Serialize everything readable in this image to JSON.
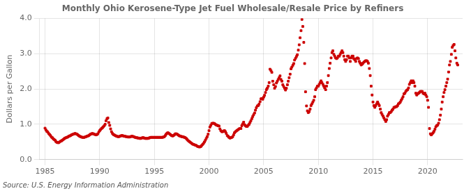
{
  "chart_data": {
    "type": "scatter",
    "title": "Monthly Ohio Kerosene-Type Jet Fuel Wholesale/Resale Price by Refiners",
    "ylabel": "Dollars per Gallon",
    "annotation": "Source: U.S. Energy Information Administration",
    "color": "#cc0000",
    "marker": "square",
    "grid": true,
    "xlim": [
      1984.5,
      2023.2
    ],
    "ylim": [
      0.0,
      4.0
    ],
    "xticks": [
      1985,
      1990,
      1995,
      2000,
      2005,
      2010,
      2015,
      2020
    ],
    "yticks": [
      {
        "value": 0.0,
        "label": "0.0"
      },
      {
        "value": 1.0,
        "label": "1.0"
      },
      {
        "value": 2.0,
        "label": "2.0"
      },
      {
        "value": 3.0,
        "label": "3.0"
      },
      {
        "value": 4.0,
        "label": "4.0"
      }
    ],
    "x": [
      1985.0,
      1985.08,
      1985.17,
      1985.25,
      1985.33,
      1985.42,
      1985.5,
      1985.58,
      1985.67,
      1985.75,
      1985.83,
      1985.92,
      1986.0,
      1986.08,
      1986.17,
      1986.25,
      1986.33,
      1986.42,
      1986.5,
      1986.58,
      1986.67,
      1986.75,
      1986.83,
      1986.92,
      1987.0,
      1987.08,
      1987.17,
      1987.25,
      1987.33,
      1987.42,
      1987.5,
      1987.58,
      1987.67,
      1987.75,
      1987.83,
      1987.92,
      1988.0,
      1988.08,
      1988.17,
      1988.25,
      1988.33,
      1988.42,
      1988.5,
      1988.58,
      1988.67,
      1988.75,
      1988.83,
      1988.92,
      1989.0,
      1989.08,
      1989.17,
      1989.25,
      1989.33,
      1989.42,
      1989.5,
      1989.58,
      1989.67,
      1989.75,
      1989.83,
      1989.92,
      1990.0,
      1990.08,
      1990.17,
      1990.25,
      1990.33,
      1990.42,
      1990.5,
      1990.58,
      1990.67,
      1990.75,
      1990.83,
      1990.92,
      1991.0,
      1991.08,
      1991.17,
      1991.25,
      1991.33,
      1991.42,
      1991.5,
      1991.58,
      1991.67,
      1991.75,
      1991.83,
      1991.92,
      1992.0,
      1992.08,
      1992.17,
      1992.25,
      1992.33,
      1992.42,
      1992.5,
      1992.58,
      1992.67,
      1992.75,
      1992.83,
      1992.92,
      1993.0,
      1993.08,
      1993.17,
      1993.25,
      1993.33,
      1993.42,
      1993.5,
      1993.58,
      1993.67,
      1993.75,
      1993.83,
      1993.92,
      1994.0,
      1994.08,
      1994.17,
      1994.25,
      1994.33,
      1994.42,
      1994.5,
      1994.58,
      1994.67,
      1994.75,
      1994.83,
      1994.92,
      1995.0,
      1995.08,
      1995.17,
      1995.25,
      1995.33,
      1995.42,
      1995.5,
      1995.58,
      1995.67,
      1995.75,
      1995.83,
      1995.92,
      1996.0,
      1996.08,
      1996.17,
      1996.25,
      1996.33,
      1996.42,
      1996.5,
      1996.58,
      1996.67,
      1996.75,
      1996.83,
      1996.92,
      1997.0,
      1997.08,
      1997.17,
      1997.25,
      1997.33,
      1997.42,
      1997.5,
      1997.58,
      1997.67,
      1997.75,
      1997.83,
      1997.92,
      1998.0,
      1998.08,
      1998.17,
      1998.25,
      1998.33,
      1998.42,
      1998.5,
      1998.58,
      1998.67,
      1998.75,
      1998.83,
      1998.92,
      1999.0,
      1999.08,
      1999.17,
      1999.25,
      1999.33,
      1999.42,
      1999.5,
      1999.58,
      1999.67,
      1999.75,
      1999.83,
      1999.92,
      2000.0,
      2000.08,
      2000.17,
      2000.25,
      2000.33,
      2000.42,
      2000.5,
      2000.58,
      2000.67,
      2000.75,
      2000.83,
      2000.92,
      2001.0,
      2001.08,
      2001.17,
      2001.25,
      2001.33,
      2001.42,
      2001.5,
      2001.58,
      2001.67,
      2001.75,
      2001.83,
      2001.92,
      2002.0,
      2002.08,
      2002.17,
      2002.25,
      2002.33,
      2002.42,
      2002.5,
      2002.58,
      2002.67,
      2002.75,
      2002.83,
      2002.92,
      2003.0,
      2003.08,
      2003.17,
      2003.25,
      2003.33,
      2003.42,
      2003.5,
      2003.58,
      2003.67,
      2003.75,
      2003.83,
      2003.92,
      2004.0,
      2004.08,
      2004.17,
      2004.25,
      2004.33,
      2004.42,
      2004.5,
      2004.58,
      2004.67,
      2004.75,
      2004.83,
      2004.92,
      2005.0,
      2005.08,
      2005.17,
      2005.25,
      2005.33,
      2005.42,
      2005.5,
      2005.58,
      2005.67,
      2005.75,
      2005.83,
      2005.92,
      2006.0,
      2006.08,
      2006.17,
      2006.25,
      2006.33,
      2006.42,
      2006.5,
      2006.58,
      2006.67,
      2006.75,
      2006.83,
      2006.92,
      2007.0,
      2007.08,
      2007.17,
      2007.25,
      2007.33,
      2007.42,
      2007.5,
      2007.58,
      2007.67,
      2007.75,
      2007.83,
      2007.92,
      2008.0,
      2008.08,
      2008.17,
      2008.25,
      2008.33,
      2008.42,
      2008.5,
      2008.58,
      2008.67,
      2008.75,
      2008.83,
      2008.92,
      2009.0,
      2009.08,
      2009.17,
      2009.25,
      2009.33,
      2009.42,
      2009.5,
      2009.58,
      2009.67,
      2009.75,
      2009.83,
      2009.92,
      2010.0,
      2010.08,
      2010.17,
      2010.25,
      2010.33,
      2010.42,
      2010.5,
      2010.58,
      2010.67,
      2010.75,
      2010.83,
      2010.92,
      2011.0,
      2011.08,
      2011.17,
      2011.25,
      2011.33,
      2011.42,
      2011.5,
      2011.58,
      2011.67,
      2011.75,
      2011.83,
      2011.92,
      2012.0,
      2012.08,
      2012.17,
      2012.25,
      2012.33,
      2012.42,
      2012.5,
      2012.58,
      2012.67,
      2012.75,
      2012.83,
      2012.92,
      2013.0,
      2013.08,
      2013.17,
      2013.25,
      2013.33,
      2013.42,
      2013.5,
      2013.58,
      2013.67,
      2013.75,
      2013.83,
      2013.92,
      2014.0,
      2014.08,
      2014.17,
      2014.25,
      2014.33,
      2014.42,
      2014.5,
      2014.58,
      2014.67,
      2014.75,
      2014.83,
      2014.92,
      2015.0,
      2015.08,
      2015.17,
      2015.25,
      2015.33,
      2015.42,
      2015.5,
      2015.58,
      2015.67,
      2015.75,
      2015.83,
      2015.92,
      2016.0,
      2016.08,
      2016.17,
      2016.25,
      2016.33,
      2016.42,
      2016.5,
      2016.58,
      2016.67,
      2016.75,
      2016.83,
      2016.92,
      2017.0,
      2017.08,
      2017.17,
      2017.25,
      2017.33,
      2017.42,
      2017.5,
      2017.58,
      2017.67,
      2017.75,
      2017.83,
      2017.92,
      2018.0,
      2018.08,
      2018.17,
      2018.25,
      2018.33,
      2018.42,
      2018.5,
      2018.58,
      2018.67,
      2018.75,
      2018.83,
      2018.92,
      2019.0,
      2019.08,
      2019.17,
      2019.25,
      2019.33,
      2019.42,
      2019.5,
      2019.58,
      2019.67,
      2019.75,
      2019.83,
      2019.92,
      2020.0,
      2020.08,
      2020.17,
      2020.25,
      2020.33,
      2020.42,
      2020.5,
      2020.58,
      2020.67,
      2020.75,
      2020.83,
      2020.92,
      2021.0,
      2021.08,
      2021.17,
      2021.25,
      2021.33,
      2021.42,
      2021.5,
      2021.58,
      2021.67,
      2021.75,
      2021.83,
      2021.92,
      2022.0,
      2022.08,
      2022.17,
      2022.25,
      2022.33,
      2022.42,
      2022.5,
      2022.58,
      2022.67,
      2022.75
    ],
    "values": [
      0.89,
      0.84,
      0.8,
      0.78,
      0.74,
      0.71,
      0.68,
      0.64,
      0.62,
      0.59,
      0.57,
      0.55,
      0.51,
      0.49,
      0.48,
      0.48,
      0.5,
      0.52,
      0.53,
      0.55,
      0.57,
      0.59,
      0.61,
      0.62,
      0.63,
      0.64,
      0.66,
      0.67,
      0.68,
      0.7,
      0.71,
      0.72,
      0.73,
      0.74,
      0.73,
      0.72,
      0.7,
      0.68,
      0.66,
      0.65,
      0.64,
      0.63,
      0.63,
      0.63,
      0.64,
      0.65,
      0.66,
      0.67,
      0.68,
      0.7,
      0.72,
      0.73,
      0.74,
      0.73,
      0.72,
      0.71,
      0.7,
      0.71,
      0.73,
      0.78,
      0.82,
      0.85,
      0.88,
      0.9,
      0.93,
      0.96,
      1.0,
      1.1,
      1.16,
      1.18,
      1.05,
      0.97,
      0.87,
      0.79,
      0.74,
      0.71,
      0.7,
      0.68,
      0.67,
      0.66,
      0.65,
      0.65,
      0.66,
      0.67,
      0.68,
      0.68,
      0.67,
      0.66,
      0.66,
      0.65,
      0.65,
      0.64,
      0.64,
      0.64,
      0.65,
      0.66,
      0.66,
      0.65,
      0.64,
      0.63,
      0.62,
      0.62,
      0.61,
      0.61,
      0.6,
      0.6,
      0.61,
      0.62,
      0.62,
      0.61,
      0.6,
      0.6,
      0.6,
      0.6,
      0.61,
      0.62,
      0.63,
      0.63,
      0.63,
      0.63,
      0.63,
      0.63,
      0.63,
      0.63,
      0.63,
      0.63,
      0.63,
      0.63,
      0.63,
      0.63,
      0.64,
      0.65,
      0.68,
      0.72,
      0.75,
      0.76,
      0.74,
      0.72,
      0.7,
      0.68,
      0.67,
      0.68,
      0.7,
      0.73,
      0.73,
      0.72,
      0.7,
      0.68,
      0.67,
      0.66,
      0.65,
      0.65,
      0.64,
      0.63,
      0.62,
      0.6,
      0.57,
      0.54,
      0.52,
      0.5,
      0.48,
      0.46,
      0.44,
      0.43,
      0.42,
      0.41,
      0.4,
      0.38,
      0.37,
      0.36,
      0.36,
      0.37,
      0.4,
      0.43,
      0.46,
      0.5,
      0.55,
      0.6,
      0.65,
      0.72,
      0.82,
      0.92,
      0.97,
      1.02,
      1.03,
      1.03,
      1.02,
      1.0,
      0.98,
      0.97,
      0.96,
      0.95,
      0.87,
      0.82,
      0.79,
      0.79,
      0.81,
      0.82,
      0.79,
      0.74,
      0.68,
      0.66,
      0.63,
      0.61,
      0.62,
      0.63,
      0.65,
      0.7,
      0.76,
      0.79,
      0.81,
      0.83,
      0.85,
      0.87,
      0.88,
      0.88,
      0.96,
      1.01,
      1.06,
      0.99,
      0.96,
      0.94,
      0.94,
      0.97,
      1.0,
      1.05,
      1.1,
      1.16,
      1.22,
      1.27,
      1.32,
      1.4,
      1.47,
      1.52,
      1.53,
      1.57,
      1.64,
      1.72,
      1.73,
      1.71,
      1.77,
      1.82,
      1.9,
      1.98,
      2.02,
      2.08,
      2.18,
      2.56,
      2.52,
      2.47,
      2.22,
      2.12,
      2.02,
      2.07,
      2.17,
      2.22,
      2.27,
      2.32,
      2.37,
      2.27,
      2.22,
      2.12,
      2.07,
      2.02,
      1.97,
      2.02,
      2.12,
      2.22,
      2.32,
      2.42,
      2.57,
      2.62,
      2.67,
      2.72,
      2.82,
      2.87,
      2.92,
      2.97,
      3.1,
      3.25,
      3.45,
      3.65,
      3.97,
      3.77,
      3.32,
      2.72,
      1.92,
      1.52,
      1.38,
      1.33,
      1.36,
      1.43,
      1.53,
      1.58,
      1.63,
      1.68,
      1.78,
      1.98,
      2.03,
      2.08,
      2.08,
      2.13,
      2.18,
      2.23,
      2.18,
      2.13,
      2.08,
      2.03,
      1.98,
      2.08,
      2.18,
      2.38,
      2.58,
      2.73,
      2.88,
      3.03,
      3.08,
      2.98,
      2.93,
      2.88,
      2.86,
      2.88,
      2.93,
      2.93,
      2.98,
      3.03,
      3.08,
      3.03,
      2.93,
      2.83,
      2.78,
      2.83,
      2.93,
      2.93,
      2.88,
      2.78,
      2.88,
      2.93,
      2.93,
      2.86,
      2.83,
      2.78,
      2.86,
      2.88,
      2.86,
      2.78,
      2.73,
      2.68,
      2.7,
      2.73,
      2.76,
      2.78,
      2.8,
      2.8,
      2.78,
      2.73,
      2.58,
      2.38,
      2.08,
      1.83,
      1.63,
      1.53,
      1.48,
      1.53,
      1.58,
      1.63,
      1.58,
      1.53,
      1.43,
      1.33,
      1.28,
      1.23,
      1.18,
      1.13,
      1.08,
      1.13,
      1.23,
      1.28,
      1.33,
      1.33,
      1.36,
      1.4,
      1.43,
      1.48,
      1.48,
      1.5,
      1.5,
      1.53,
      1.58,
      1.6,
      1.63,
      1.68,
      1.73,
      1.78,
      1.86,
      1.88,
      1.93,
      1.96,
      1.98,
      2.03,
      2.13,
      2.18,
      2.23,
      2.18,
      2.23,
      2.18,
      2.08,
      1.88,
      1.83,
      1.86,
      1.88,
      1.9,
      1.93,
      1.93,
      1.93,
      1.88,
      1.86,
      1.88,
      1.83,
      1.78,
      1.68,
      1.48,
      0.88,
      0.73,
      0.7,
      0.73,
      0.76,
      0.8,
      0.86,
      0.93,
      0.96,
      0.98,
      1.03,
      1.13,
      1.26,
      1.43,
      1.63,
      1.78,
      1.9,
      1.98,
      2.08,
      2.18,
      2.28,
      2.48,
      2.68,
      2.78,
      2.98,
      3.18,
      3.23,
      3.26,
      3.08,
      2.88,
      2.73,
      2.68
    ]
  }
}
